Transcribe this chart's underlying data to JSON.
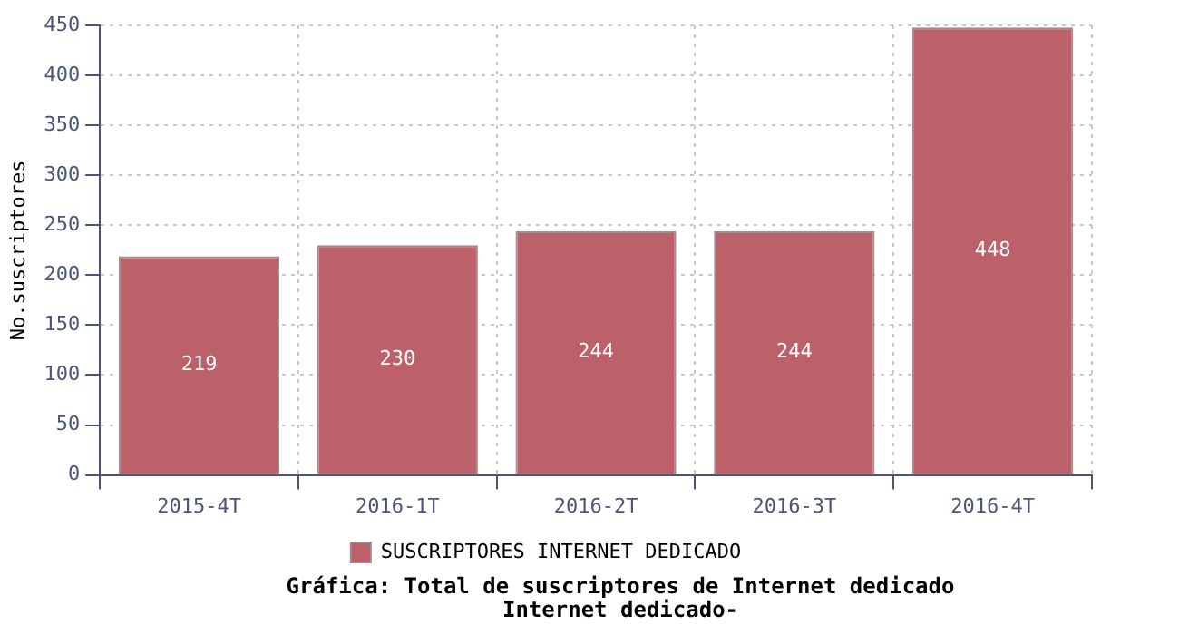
{
  "chart_data": {
    "type": "bar",
    "title": "Gráfica: Total de suscriptores de Internet dedicado",
    "subtitle": "Internet dedicado-",
    "ylabel": "No.suscriptores",
    "categories": [
      "2015-4T",
      "2016-1T",
      "2016-2T",
      "2016-3T",
      "2016-4T"
    ],
    "series": [
      {
        "name": "SUSCRIPTORES INTERNET DEDICADO",
        "color": "#bc606a",
        "values": [
          219,
          230,
          244,
          244,
          448
        ]
      }
    ],
    "ylim": [
      0,
      450
    ],
    "yticks": [
      0,
      50,
      100,
      150,
      200,
      250,
      300,
      350,
      400,
      450
    ],
    "grid": true,
    "legend": "bottom",
    "data_labels": true
  }
}
